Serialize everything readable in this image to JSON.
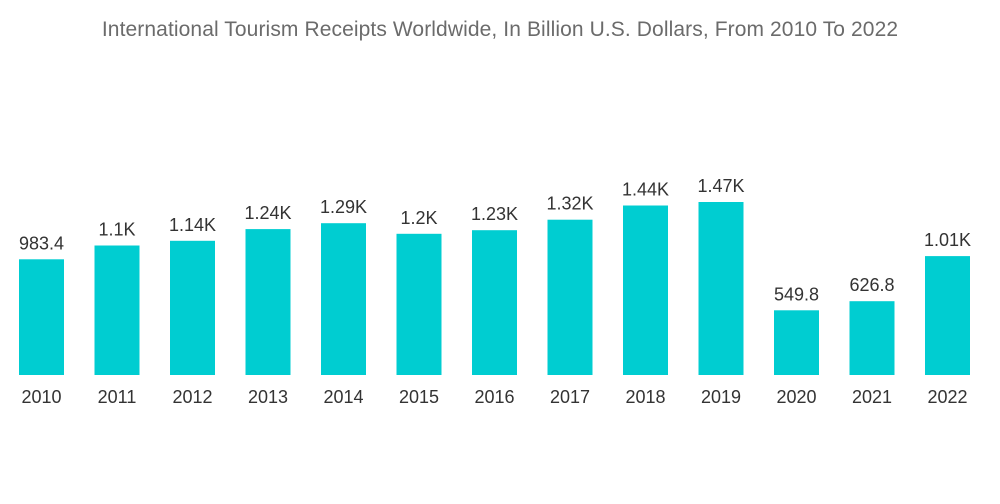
{
  "chart_data": {
    "type": "bar",
    "title": "International Tourism Receipts Worldwide, In Billion U.S. Dollars, From 2010 To 2022",
    "xlabel": "",
    "ylabel": "",
    "categories": [
      "2010",
      "2011",
      "2012",
      "2013",
      "2014",
      "2015",
      "2016",
      "2017",
      "2018",
      "2019",
      "2020",
      "2021",
      "2022"
    ],
    "values": [
      983.4,
      1100,
      1140,
      1240,
      1290,
      1200,
      1230,
      1320,
      1440,
      1470,
      549.8,
      626.8,
      1010
    ],
    "value_labels": [
      "983.4",
      "1.1K",
      "1.14K",
      "1.24K",
      "1.29K",
      "1.2K",
      "1.23K",
      "1.32K",
      "1.44K",
      "1.47K",
      "549.8",
      "626.8",
      "1.01K"
    ],
    "ylim": [
      0,
      1470
    ],
    "grid": false,
    "legend": "none",
    "colors": {
      "bar": "#00cdd1",
      "text": "#333333",
      "title": "#6b6b6b"
    }
  }
}
